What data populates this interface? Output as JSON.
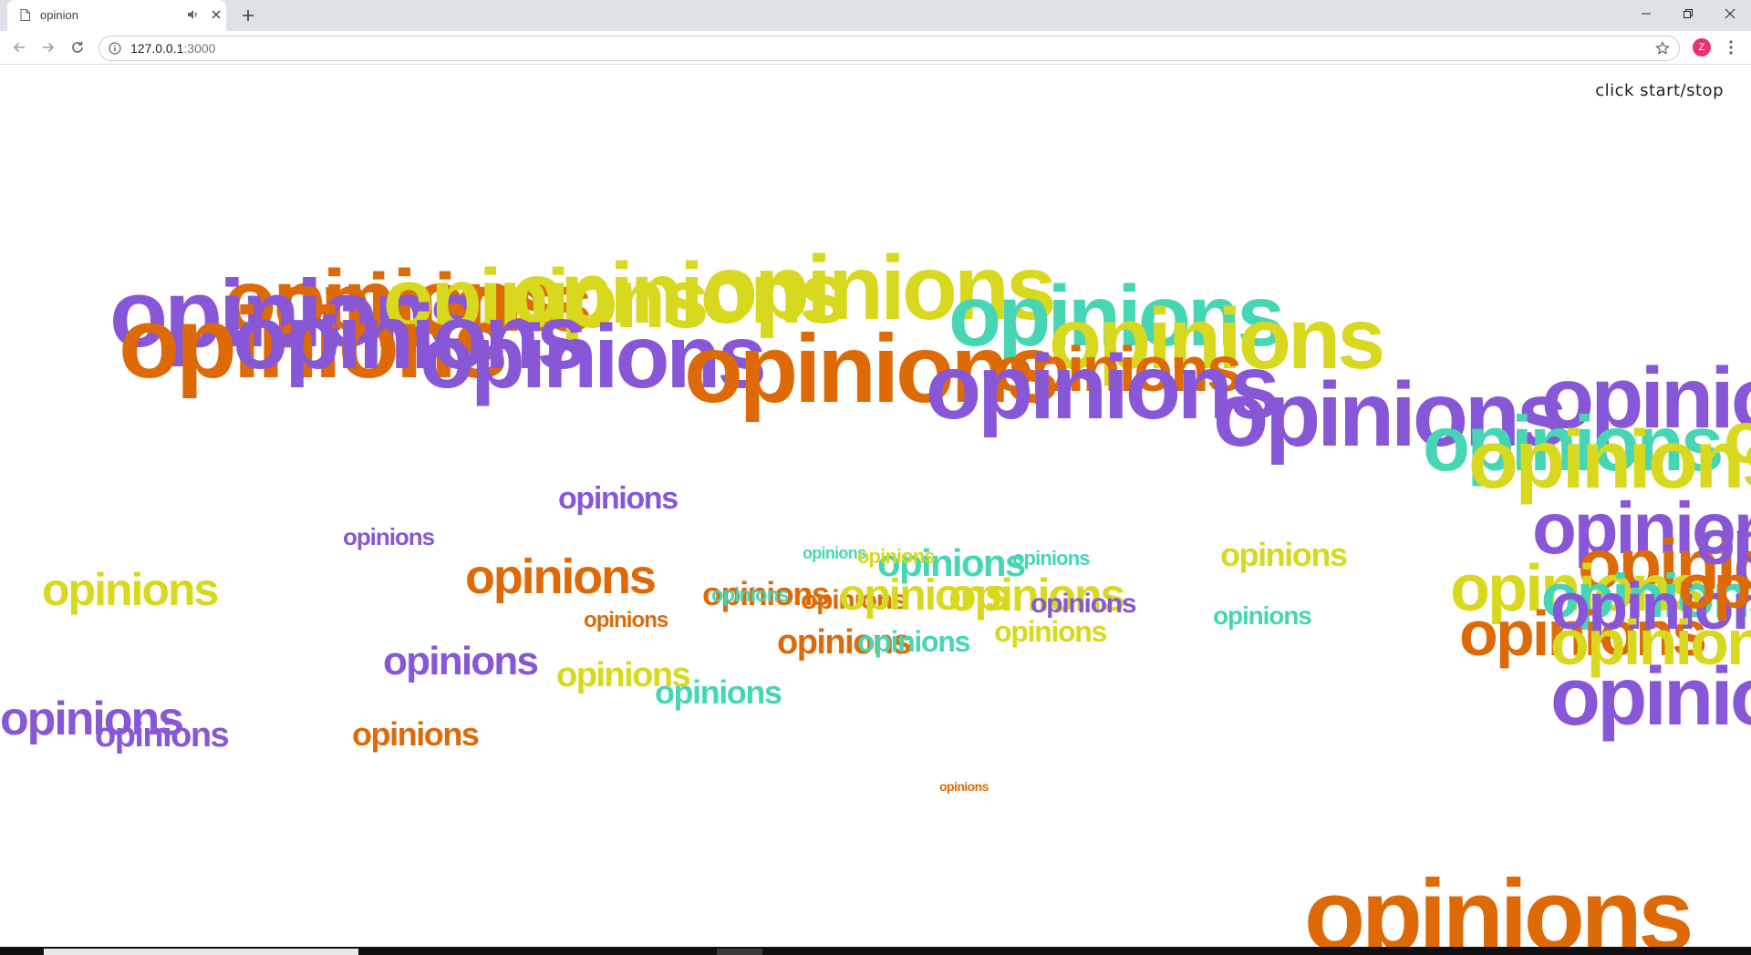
{
  "browser": {
    "tab_title": "opinion",
    "url_host": "127.0.0.1",
    "url_port": ":3000",
    "avatar_letter": "Z"
  },
  "page": {
    "control_label": "click start/stop",
    "word": "opinions",
    "colors": {
      "purple": "#8757d8",
      "orange": "#dd6a06",
      "yellow": "#d8d81e",
      "teal": "#47d6b5"
    }
  }
}
